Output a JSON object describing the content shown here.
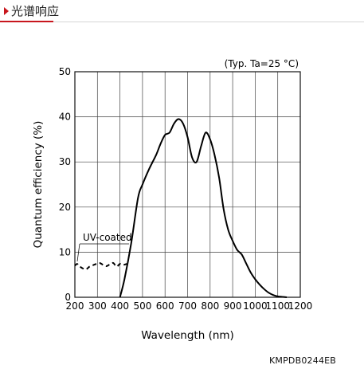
{
  "header": {
    "title": "光谱响应"
  },
  "footer": {
    "code": "KMPDB0244EB"
  },
  "chart_data": {
    "type": "line",
    "title": "",
    "annotation": "(Typ. Ta=25 °C)",
    "xlabel": "Wavelength (nm)",
    "ylabel": "Quantum efficiency (%)",
    "xlim": [
      200,
      1200
    ],
    "ylim": [
      0,
      50
    ],
    "xticks": [
      200,
      300,
      400,
      500,
      600,
      700,
      800,
      900,
      1000,
      1100,
      1200
    ],
    "yticks": [
      0,
      10,
      20,
      30,
      40,
      50
    ],
    "grid": true,
    "colors": {
      "line": "#000000",
      "grid": "#444444",
      "header_accent": "#c8161d"
    },
    "series": [
      {
        "name": "",
        "style": "solid",
        "x": [
          400,
          420,
          450,
          480,
          500,
          530,
          560,
          580,
          600,
          620,
          640,
          660,
          680,
          700,
          720,
          740,
          760,
          780,
          800,
          820,
          840,
          860,
          880,
          900,
          920,
          940,
          960,
          980,
          1000,
          1020,
          1040,
          1060,
          1080,
          1100,
          1120,
          1140
        ],
        "y": [
          0,
          4,
          12,
          22,
          25,
          28.5,
          31.5,
          34,
          36,
          36.5,
          38.5,
          39.5,
          38.5,
          35.5,
          31,
          30,
          33.5,
          36.5,
          35,
          31.5,
          26.5,
          19.5,
          15,
          12.5,
          10.5,
          9.5,
          7.5,
          5.5,
          4,
          2.8,
          1.8,
          1,
          0.5,
          0.2,
          0.1,
          0
        ]
      },
      {
        "name": "UV-coated",
        "style": "dashed",
        "x": [
          200,
          210,
          220,
          235,
          250,
          265,
          280,
          295,
          310,
          325,
          340,
          355,
          370,
          385,
          400,
          415,
          430
        ],
        "y": [
          7,
          7.4,
          6.9,
          6.4,
          6.2,
          6.8,
          7.1,
          7.4,
          7.6,
          7.2,
          6.9,
          7.3,
          7.6,
          6.8,
          7.4,
          7.2,
          7.4
        ]
      }
    ],
    "series_label": {
      "text": "UV-coated",
      "series_index": 1
    }
  }
}
